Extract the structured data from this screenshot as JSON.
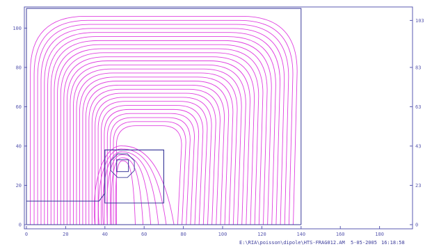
{
  "chart_data": {
    "type": "line",
    "title": "",
    "xlabel": "",
    "ylabel": "",
    "xlim": [
      0,
      196
    ],
    "ylim": [
      0,
      110
    ],
    "x_ticks": [
      "0",
      "20",
      "40",
      "60",
      "80",
      "100",
      "120",
      "140",
      "160",
      "180"
    ],
    "y_ticks": [
      "0",
      "20",
      "40",
      "60",
      "80",
      "100"
    ],
    "y2_ticks": [
      "0",
      "23",
      "43",
      "63",
      "83",
      "103"
    ],
    "problem_boundary": {
      "x": [
        0,
        140
      ],
      "y": [
        0,
        110
      ]
    },
    "iron_outline": [
      [
        0,
        12
      ],
      [
        37,
        12
      ],
      [
        40,
        16
      ],
      [
        40,
        38
      ],
      [
        70,
        38
      ],
      [
        70,
        11
      ]
    ],
    "window_box": {
      "x": [
        40,
        70
      ],
      "y": [
        11,
        38
      ]
    },
    "coil_box": {
      "x": [
        46,
        52
      ],
      "y": [
        27,
        33
      ]
    },
    "coil_octagon_center": [
      49,
      30
    ],
    "field_line_count": 34,
    "colors": {
      "field_lines": "#e040e0",
      "frame": "#5a5ab0",
      "outline": "#3a3a9a"
    }
  },
  "footer": {
    "file_path": "E:\\RIA\\poisson\\dipole\\HTS-FRAG012.AM",
    "date": "5-05-2005",
    "time": "16:18:58"
  }
}
